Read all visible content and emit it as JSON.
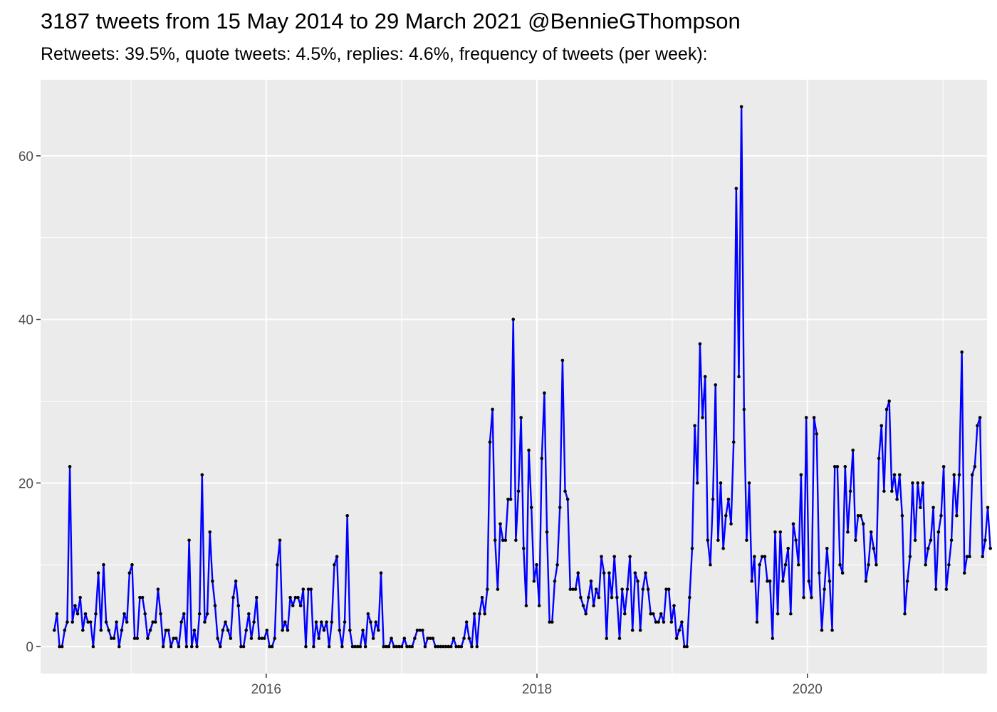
{
  "title": "3187 tweets from 15 May 2014 to 29 March 2021 @BennieGThompson",
  "subtitle": "Retweets: 39.5%, quote tweets: 4.5%, replies: 4.6%, frequency of tweets (per week):",
  "chart_data": {
    "type": "line",
    "title": "3187 tweets from 15 May 2014 to 29 March 2021 @BennieGThompson",
    "subtitle": "Retweets: 39.5%, quote tweets: 4.5%, replies: 4.6%, frequency of tweets (per week):",
    "xlabel": "",
    "ylabel": "",
    "x_axis": "date",
    "x_start": "2014-06-08",
    "x_interval": "weekly",
    "xlim": [
      "2014-05-02",
      "2021-04-30"
    ],
    "ylim": [
      -3.3,
      69.3
    ],
    "x_ticks": [
      "2016",
      "2018",
      "2020"
    ],
    "y_ticks": [
      0,
      20,
      40,
      60
    ],
    "grid": true,
    "legend": "none",
    "line_color": "#0000ff",
    "point_color": "#000000",
    "panel_color": "#ebebeb",
    "series": [
      {
        "values": [
          2,
          4,
          0,
          0,
          2,
          3,
          22,
          3,
          5,
          4,
          6,
          2,
          4,
          3,
          3,
          0,
          4,
          9,
          2,
          10,
          3,
          2,
          1,
          1,
          3,
          0,
          2,
          4,
          3,
          9,
          10,
          1,
          1,
          6,
          6,
          4,
          1,
          2,
          3,
          3,
          7,
          4,
          0,
          2,
          2,
          0,
          1,
          1,
          0,
          3,
          4,
          0,
          13,
          0,
          2,
          0,
          4,
          21,
          3,
          4,
          14,
          8,
          5,
          1,
          0,
          2,
          3,
          2,
          1,
          6,
          8,
          5,
          0,
          0,
          2,
          4,
          1,
          3,
          6,
          1,
          1,
          1,
          2,
          0,
          0,
          1,
          10,
          13,
          2,
          3,
          2,
          6,
          5,
          6,
          6,
          5,
          7,
          0,
          7,
          7,
          0,
          3,
          1,
          3,
          2,
          3,
          0,
          3,
          10,
          11,
          2,
          0,
          3,
          16,
          2,
          0,
          0,
          0,
          0,
          2,
          0,
          4,
          3,
          1,
          3,
          2,
          9,
          0,
          0,
          0,
          1,
          0,
          0,
          0,
          0,
          1,
          0,
          0,
          0,
          1,
          2,
          2,
          2,
          0,
          1,
          1,
          1,
          0,
          0,
          0,
          0,
          0,
          0,
          0,
          1,
          0,
          0,
          0,
          1,
          3,
          1,
          0,
          4,
          0,
          4,
          6,
          4,
          7,
          25,
          29,
          13,
          7,
          15,
          13,
          13,
          18,
          18,
          40,
          13,
          19,
          28,
          12,
          5,
          24,
          17,
          8,
          10,
          5,
          23,
          31,
          14,
          3,
          3,
          8,
          10,
          17,
          35,
          19,
          18,
          7,
          7,
          7,
          9,
          6,
          5,
          4,
          6,
          8,
          5,
          7,
          6,
          11,
          9,
          1,
          9,
          6,
          11,
          6,
          1,
          7,
          4,
          7,
          11,
          2,
          9,
          8,
          2,
          7,
          9,
          7,
          4,
          4,
          3,
          3,
          4,
          3,
          7,
          7,
          3,
          5,
          1,
          2,
          3,
          0,
          0,
          6,
          12,
          27,
          20,
          37,
          28,
          33,
          13,
          10,
          18,
          32,
          13,
          20,
          12,
          16,
          18,
          15,
          25,
          56,
          33,
          66,
          29,
          13,
          20,
          8,
          11,
          3,
          10,
          11,
          11,
          8,
          8,
          1,
          14,
          4,
          14,
          8,
          10,
          12,
          4,
          15,
          13,
          10,
          21,
          6,
          28,
          8,
          6,
          28,
          26,
          9,
          2,
          7,
          12,
          8,
          2,
          22,
          22,
          10,
          9,
          22,
          14,
          19,
          24,
          13,
          16,
          16,
          15,
          8,
          10,
          14,
          12,
          10,
          23,
          27,
          19,
          29,
          30,
          19,
          21,
          18,
          21,
          16,
          4,
          8,
          11,
          20,
          13,
          20,
          17,
          20,
          10,
          12,
          13,
          17,
          7,
          14,
          16,
          22,
          7,
          10,
          13,
          21,
          16,
          21,
          36,
          9,
          11,
          11,
          21,
          22,
          27,
          28,
          11,
          13,
          17,
          12
        ]
      }
    ]
  }
}
